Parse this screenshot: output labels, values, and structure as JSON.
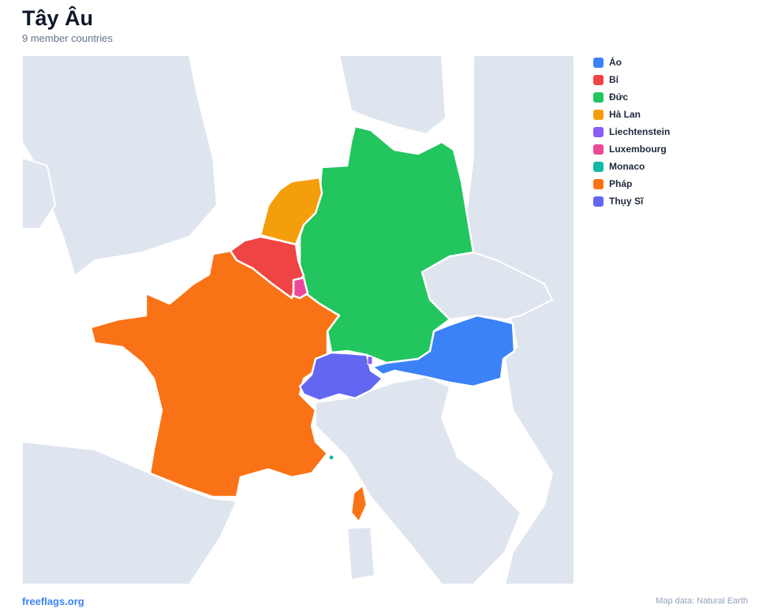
{
  "header": {
    "title": "Tây Âu",
    "subtitle": "9 member countries"
  },
  "legend": [
    {
      "name": "Áo",
      "color": "#3b82f6"
    },
    {
      "name": "Bỉ",
      "color": "#ef4444"
    },
    {
      "name": "Đức",
      "color": "#22c55e"
    },
    {
      "name": "Hà Lan",
      "color": "#f59e0b"
    },
    {
      "name": "Liechtenstein",
      "color": "#8b5cf6"
    },
    {
      "name": "Luxembourg",
      "color": "#ec4899"
    },
    {
      "name": "Monaco",
      "color": "#14b8a6"
    },
    {
      "name": "Pháp",
      "color": "#f97316"
    },
    {
      "name": "Thụy Sĩ",
      "color": "#6366f1"
    }
  ],
  "footer": {
    "site": "freeflags.org",
    "credit": "Map data: Natural Earth"
  }
}
